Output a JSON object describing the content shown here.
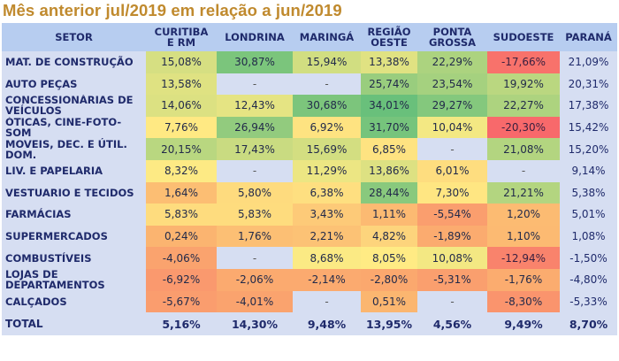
{
  "title": "Mês anterior jul/2019 em relação a jun/2019",
  "chart_data": {
    "type": "heatmap",
    "title": "Mês anterior jul/2019 em relação a jun/2019",
    "row_header": "SETOR",
    "columns": [
      "CURITIBA E RM",
      "LONDRINA",
      "MARINGÁ",
      "REGIÃO OESTE",
      "PONTA GROSSA",
      "SUDOESTE",
      "PARANÁ"
    ],
    "column_labels": [
      [
        "CURITIBA",
        "E RM"
      ],
      [
        "LONDRINA"
      ],
      [
        "MARINGÁ"
      ],
      [
        "REGIÃO",
        "OESTE"
      ],
      [
        "PONTA",
        "GROSSA"
      ],
      [
        "SUDOESTE"
      ],
      [
        "PARANÁ"
      ]
    ],
    "unit": "%",
    "rows": [
      {
        "setor": "MAT. DE CONSTRUÇÃO",
        "values": [
          15.08,
          30.87,
          15.94,
          13.38,
          22.29,
          -17.66,
          21.09
        ]
      },
      {
        "setor": "AUTO PEÇAS",
        "values": [
          13.58,
          null,
          null,
          25.74,
          23.54,
          19.92,
          20.31
        ]
      },
      {
        "setor": "CONCESSIONÁRIAS DE VEÍCULOS",
        "values": [
          14.06,
          12.43,
          30.68,
          34.01,
          29.27,
          22.27,
          17.38
        ]
      },
      {
        "setor": "ÓTICAS, CINE-FOTO-SOM",
        "values": [
          7.76,
          26.94,
          6.92,
          31.7,
          10.04,
          -20.3,
          15.42
        ]
      },
      {
        "setor": "MOVEIS, DEC. E ÚTIL. DOM.",
        "values": [
          20.15,
          17.43,
          15.69,
          6.85,
          null,
          21.08,
          15.2
        ]
      },
      {
        "setor": "LIV. E PAPELARIA",
        "values": [
          8.32,
          null,
          11.29,
          13.86,
          6.01,
          null,
          9.14
        ]
      },
      {
        "setor": "VESTUARIO E TECIDOS",
        "values": [
          1.64,
          5.8,
          6.38,
          28.44,
          7.3,
          21.21,
          5.38
        ]
      },
      {
        "setor": "FARMÁCIAS",
        "values": [
          5.83,
          5.83,
          3.43,
          1.11,
          -5.54,
          1.2,
          5.01
        ]
      },
      {
        "setor": "SUPERMERCADOS",
        "values": [
          0.24,
          1.76,
          2.21,
          4.82,
          -1.89,
          1.1,
          1.08
        ]
      },
      {
        "setor": "COMBUSTÍVEIS",
        "values": [
          -4.06,
          null,
          8.68,
          8.05,
          10.08,
          -12.94,
          -1.5
        ]
      },
      {
        "setor": "LOJAS DE DEPARTAMENTOS",
        "values": [
          -6.92,
          -2.06,
          -2.14,
          -2.8,
          -5.31,
          -1.76,
          -4.8
        ]
      },
      {
        "setor": "CALÇADOS",
        "values": [
          -5.67,
          -4.01,
          null,
          0.51,
          null,
          -8.3,
          -5.33
        ]
      }
    ],
    "total": {
      "setor": "TOTAL",
      "values": [
        5.16,
        14.3,
        9.48,
        13.95,
        4.56,
        9.49,
        8.7
      ]
    },
    "empty_marker": "-",
    "color_scale": {
      "low": "#f8696b",
      "mid": "#ffeb84",
      "high": "#63be7b"
    }
  },
  "colors": {
    "title": "#c08a2e",
    "header_bg": "#b7cdf0",
    "label_bg": "#d6def2",
    "label_text": "#1f2a6b"
  }
}
